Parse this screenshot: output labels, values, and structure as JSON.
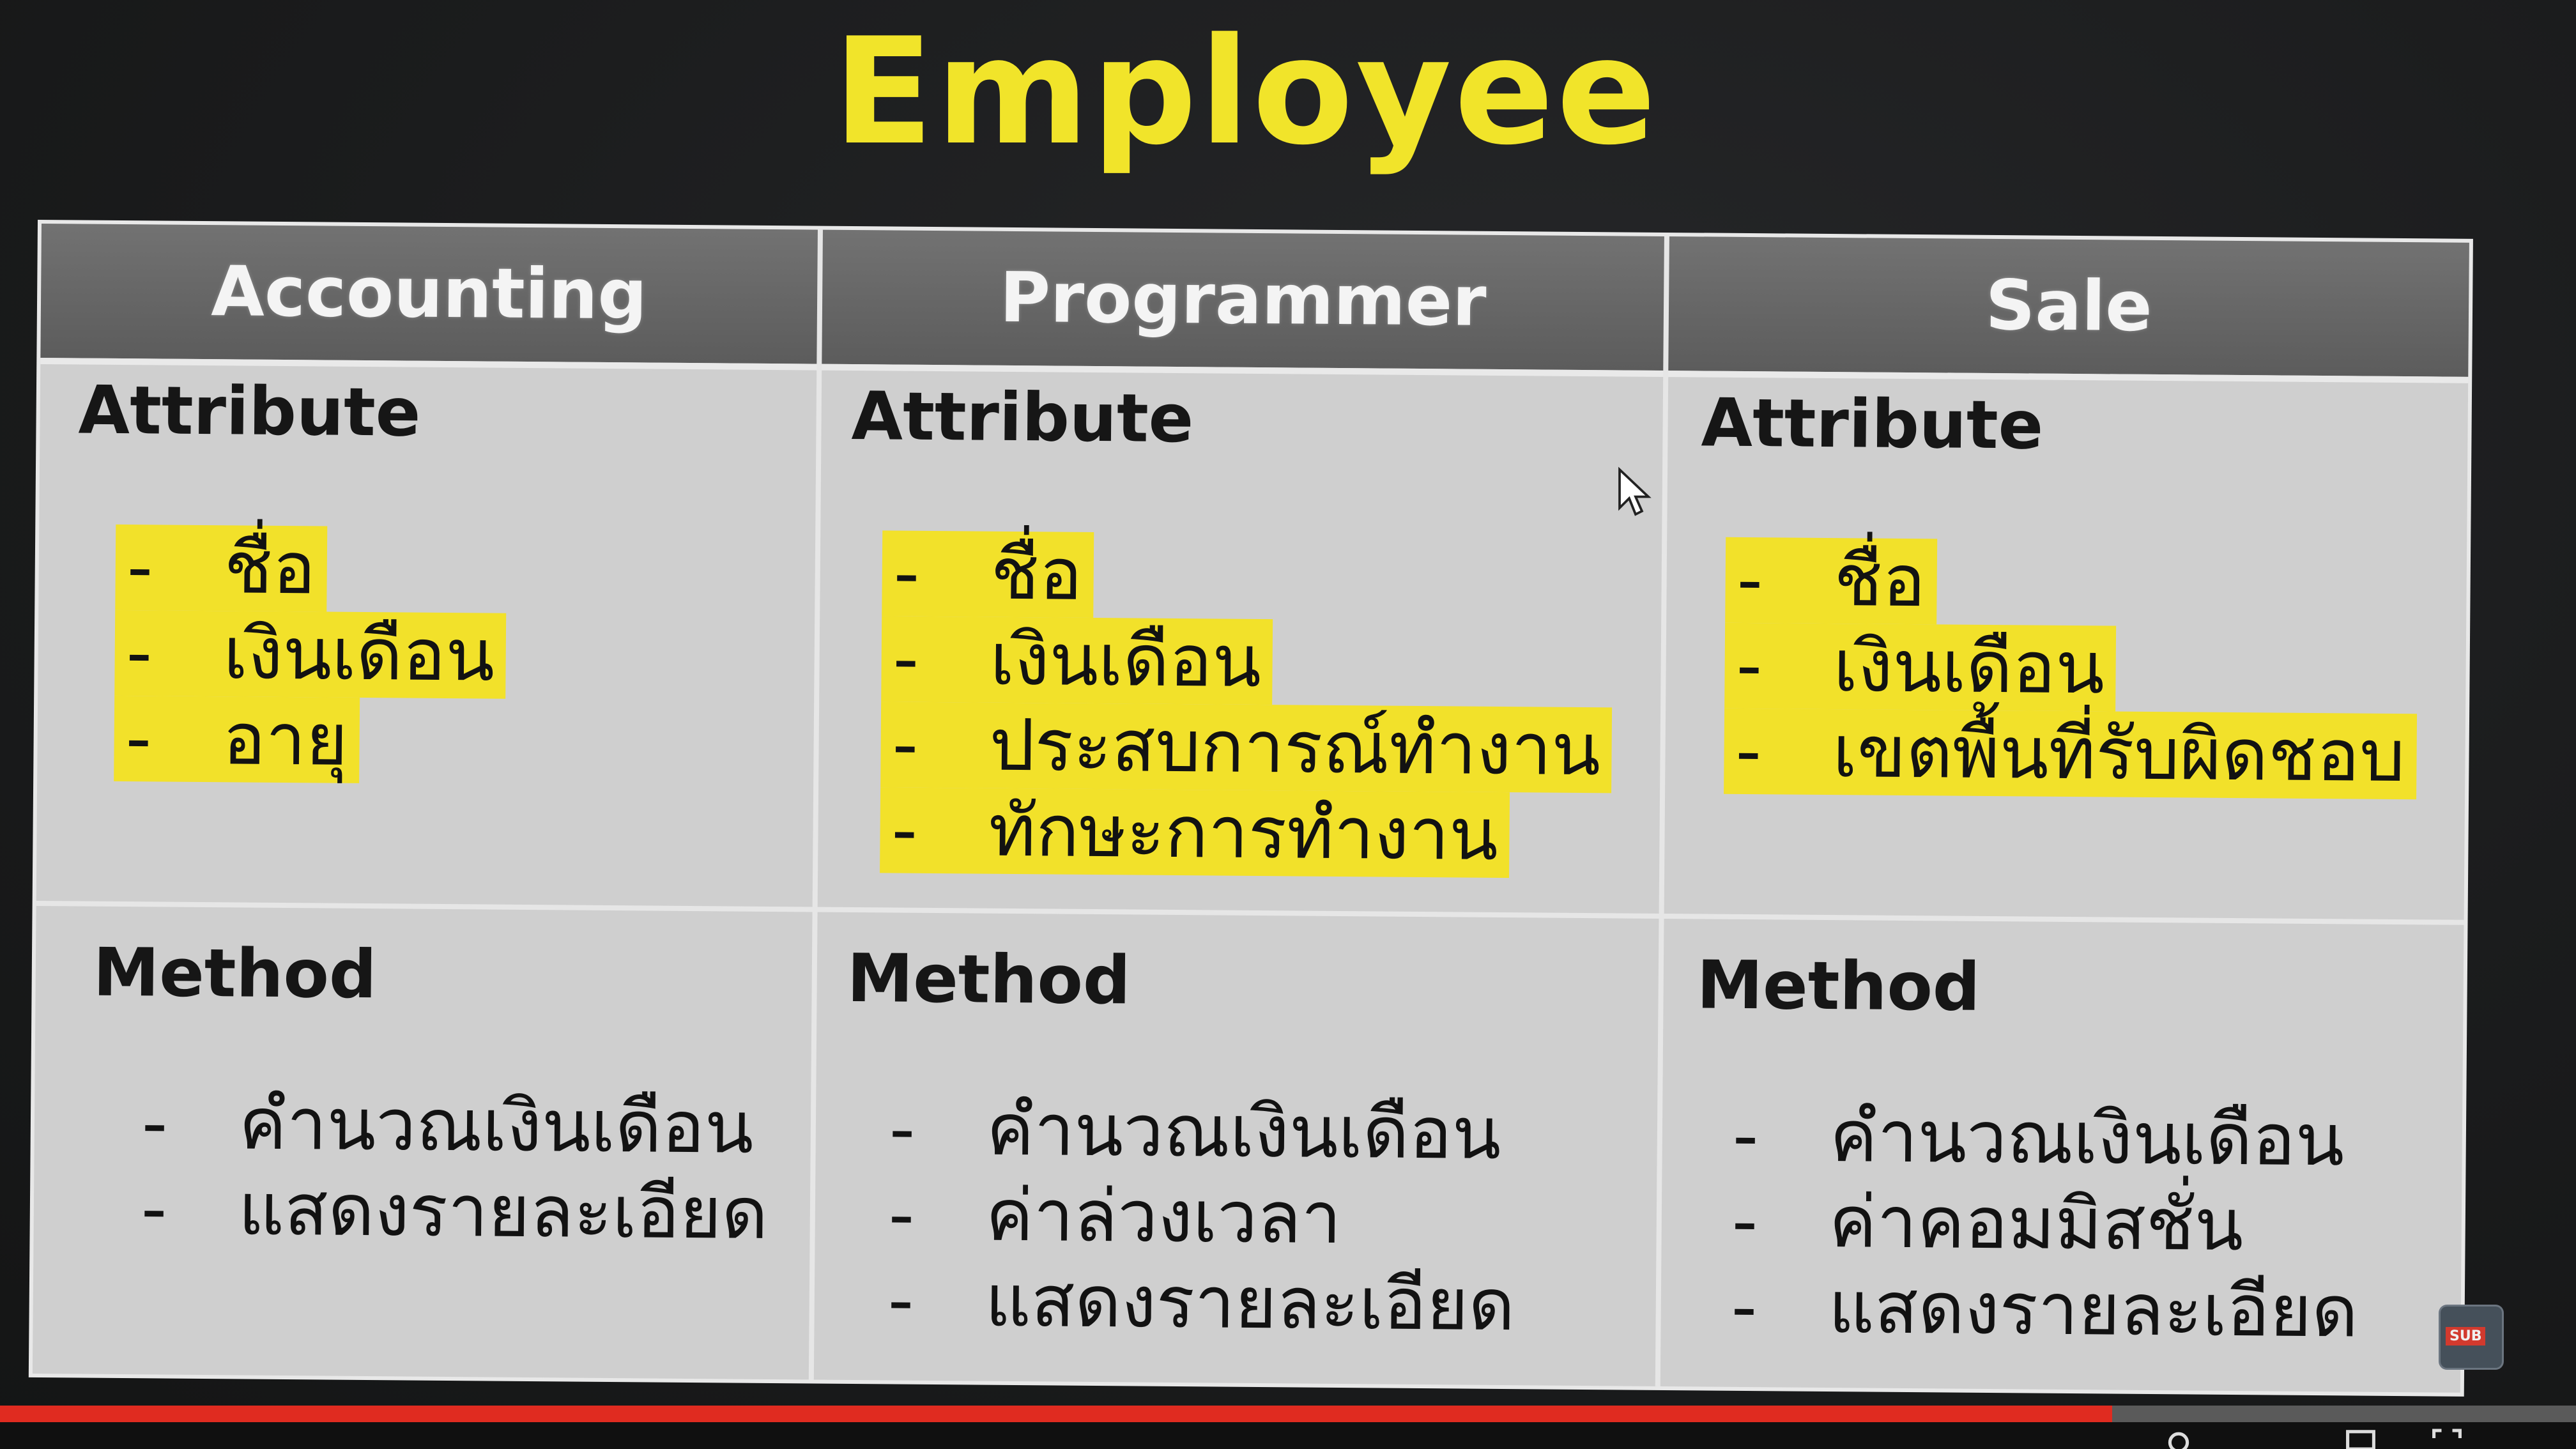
{
  "slide": {
    "title": "Employee",
    "columns": [
      {
        "header": "Accounting",
        "attribute_label": "Attribute",
        "attributes": [
          "ชื่อ",
          "เงินเดือน",
          "อายุ"
        ],
        "method_label": "Method",
        "methods": [
          "คำนวณเงินเดือน",
          "แสดงรายละเอียด"
        ]
      },
      {
        "header": "Programmer",
        "attribute_label": "Attribute",
        "attributes": [
          "ชื่อ",
          "เงินเดือน",
          "ประสบการณ์ทำงาน",
          "ทักษะการทำงาน"
        ],
        "method_label": "Method",
        "methods": [
          "คำนวณเงินเดือน",
          "ค่าล่วงเวลา",
          "แสดงรายละเอียด"
        ]
      },
      {
        "header": "Sale",
        "attribute_label": "Attribute",
        "attributes": [
          "ชื่อ",
          "เงินเดือน",
          "เขตพื้นที่รับผิดชอบ"
        ],
        "method_label": "Method",
        "methods": [
          "คำนวณเงินเดือน",
          "ค่าคอมมิสชั่น",
          "แสดงรายละเอียด"
        ]
      }
    ],
    "bullet": "-"
  },
  "player": {
    "progress": 0.82,
    "subscribe_badge": "SUB"
  },
  "colors": {
    "title": "#f1e42a",
    "highlight": "#f2e12a",
    "header_bg": "#666666",
    "cell_bg": "#cfcfcf",
    "progress": "#e02b20"
  },
  "icons": [
    "mouse-cursor-icon",
    "subscribe-badge-icon",
    "settings-icon",
    "fullscreen-icon"
  ]
}
